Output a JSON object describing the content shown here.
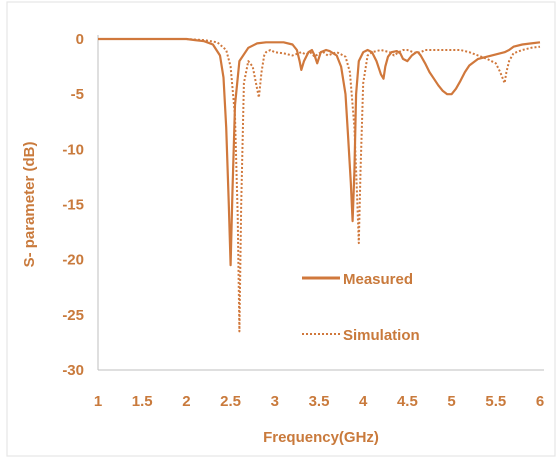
{
  "chart_data": {
    "type": "line",
    "title": "",
    "xlabel": "Frequency(GHz)",
    "ylabel": "S- parameter (dB)",
    "xlim": [
      1,
      6
    ],
    "ylim": [
      -30,
      0
    ],
    "x_ticks": [
      "1",
      "1.5",
      "2",
      "2.5",
      "3",
      "3.5",
      "4",
      "4.5",
      "5",
      "5.5",
      "6"
    ],
    "y_ticks": [
      "0",
      "-5",
      "-10",
      "-15",
      "-20",
      "-25",
      "-30"
    ],
    "grid": false,
    "legend_position": "center-right",
    "line_color": "#d0783c",
    "series": [
      {
        "name": "Measured",
        "style": "solid",
        "x": [
          1.0,
          1.5,
          2.0,
          2.1,
          2.2,
          2.3,
          2.38,
          2.42,
          2.45,
          2.48,
          2.5,
          2.52,
          2.55,
          2.6,
          2.7,
          2.8,
          2.9,
          3.0,
          3.1,
          3.2,
          3.25,
          3.28,
          3.3,
          3.33,
          3.38,
          3.42,
          3.45,
          3.48,
          3.52,
          3.58,
          3.62,
          3.7,
          3.75,
          3.8,
          3.83,
          3.86,
          3.88,
          3.9,
          3.92,
          3.95,
          4.0,
          4.05,
          4.1,
          4.15,
          4.2,
          4.23,
          4.25,
          4.28,
          4.32,
          4.38,
          4.42,
          4.45,
          4.5,
          4.55,
          4.6,
          4.62,
          4.65,
          4.7,
          4.75,
          4.8,
          4.85,
          4.9,
          4.95,
          5.0,
          5.05,
          5.1,
          5.15,
          5.2,
          5.3,
          5.4,
          5.5,
          5.6,
          5.65,
          5.7,
          5.8,
          5.9,
          6.0
        ],
        "y": [
          0.0,
          0.0,
          0.0,
          -0.1,
          -0.2,
          -0.5,
          -1.5,
          -3.5,
          -8.0,
          -15.0,
          -20.5,
          -14.0,
          -6.0,
          -2.0,
          -0.8,
          -0.4,
          -0.3,
          -0.3,
          -0.3,
          -0.5,
          -1.0,
          -2.0,
          -2.8,
          -2.0,
          -1.2,
          -1.0,
          -1.5,
          -2.2,
          -1.2,
          -1.0,
          -1.1,
          -1.5,
          -2.5,
          -5.0,
          -9.0,
          -13.0,
          -16.5,
          -12.0,
          -5.0,
          -2.0,
          -1.2,
          -1.0,
          -1.2,
          -2.0,
          -3.2,
          -3.6,
          -2.5,
          -1.6,
          -1.2,
          -1.1,
          -1.3,
          -1.8,
          -2.0,
          -1.5,
          -1.2,
          -1.2,
          -1.5,
          -2.2,
          -3.0,
          -3.6,
          -4.2,
          -4.7,
          -5.0,
          -5.0,
          -4.5,
          -3.8,
          -3.0,
          -2.4,
          -1.8,
          -1.6,
          -1.4,
          -1.2,
          -1.0,
          -0.7,
          -0.5,
          -0.4,
          -0.3
        ]
      },
      {
        "name": "Simulation",
        "style": "dotted",
        "x": [
          1.0,
          1.5,
          2.0,
          2.2,
          2.35,
          2.45,
          2.5,
          2.55,
          2.58,
          2.6,
          2.62,
          2.65,
          2.7,
          2.75,
          2.8,
          2.82,
          2.85,
          2.88,
          2.9,
          2.95,
          3.0,
          3.1,
          3.2,
          3.3,
          3.35,
          3.4,
          3.45,
          3.5,
          3.55,
          3.6,
          3.7,
          3.75,
          3.8,
          3.85,
          3.9,
          3.93,
          3.95,
          3.97,
          4.0,
          4.05,
          4.1,
          4.2,
          4.3,
          4.35,
          4.4,
          4.45,
          4.5,
          4.6,
          4.65,
          4.7,
          4.75,
          4.8,
          4.85,
          4.9,
          4.95,
          5.0,
          5.1,
          5.2,
          5.3,
          5.4,
          5.5,
          5.55,
          5.6,
          5.62,
          5.65,
          5.7,
          5.8,
          5.9,
          6.0
        ],
        "y": [
          0.0,
          0.0,
          0.0,
          -0.1,
          -0.3,
          -1.0,
          -2.5,
          -7.0,
          -16.0,
          -26.5,
          -15.0,
          -4.0,
          -2.0,
          -2.5,
          -4.5,
          -5.3,
          -3.0,
          -1.5,
          -1.2,
          -1.0,
          -1.2,
          -1.3,
          -1.5,
          -1.2,
          -1.4,
          -1.2,
          -1.6,
          -1.3,
          -1.2,
          -1.5,
          -1.2,
          -1.4,
          -1.6,
          -3.0,
          -8.0,
          -14.0,
          -18.5,
          -12.0,
          -4.0,
          -1.5,
          -1.2,
          -1.0,
          -1.2,
          -1.5,
          -1.2,
          -1.0,
          -1.0,
          -1.3,
          -1.2,
          -1.0,
          -1.0,
          -1.0,
          -1.0,
          -1.0,
          -1.0,
          -1.0,
          -1.0,
          -1.2,
          -1.5,
          -1.8,
          -2.2,
          -3.0,
          -4.0,
          -3.0,
          -2.0,
          -1.3,
          -1.0,
          -0.8,
          -0.7
        ]
      }
    ]
  }
}
